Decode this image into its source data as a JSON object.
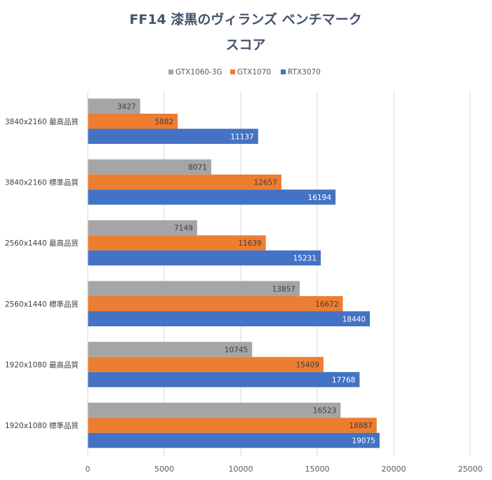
{
  "chart_data": {
    "type": "bar",
    "orientation": "horizontal",
    "title_line1": "FF14 漆黒のヴィランズ ベンチマーク",
    "title_line2": "スコア",
    "categories": [
      "3840x2160 最高品質",
      "3840x2160 標準品質",
      "2560x1440 最高品質",
      "2560x1440 標準品質",
      "1920x1080 最高品質",
      "1920x1080 標準品質"
    ],
    "series": [
      {
        "name": "GTX1060-3G",
        "color": "#a5a5a5",
        "values": [
          3427,
          8071,
          7149,
          13857,
          10745,
          16523
        ]
      },
      {
        "name": "GTX1070",
        "color": "#ed7d31",
        "values": [
          5882,
          12657,
          11639,
          16672,
          15409,
          18887
        ]
      },
      {
        "name": "RTX3070",
        "color": "#4472c4",
        "values": [
          11137,
          16194,
          15231,
          18440,
          17768,
          19075
        ]
      }
    ],
    "xlim": [
      0,
      25000
    ],
    "xticks": [
      "0",
      "5000",
      "10000",
      "15000",
      "20000",
      "25000"
    ],
    "legend_position": "top",
    "grid": true
  }
}
